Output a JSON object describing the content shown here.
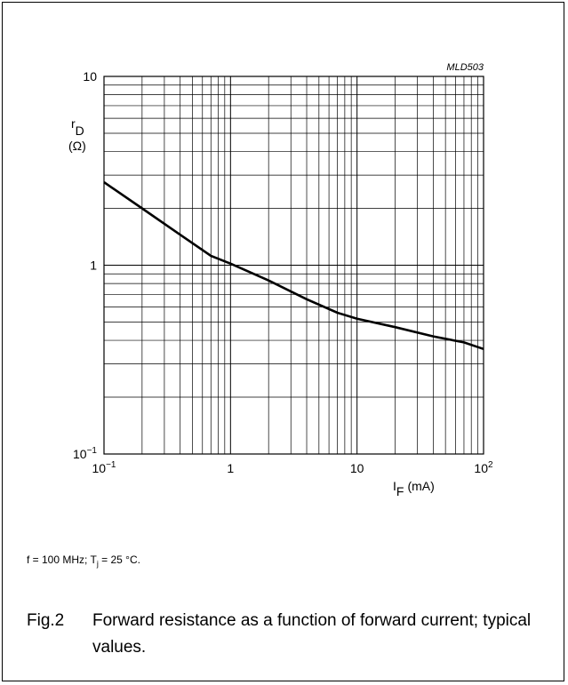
{
  "chart_data": {
    "type": "line",
    "title": "",
    "figure_id": "MLD503",
    "xscale": "log",
    "yscale": "log",
    "xlim": [
      0.1,
      100
    ],
    "ylim": [
      0.1,
      10
    ],
    "xlabel": {
      "symbol": "I",
      "subscript": "F",
      "unit": "(mA)"
    },
    "ylabel": {
      "symbol": "r",
      "subscript": "D",
      "unit": "(Ω)"
    },
    "x_ticks": [
      {
        "base": "10",
        "exp": "−1"
      },
      {
        "base": "1",
        "exp": ""
      },
      {
        "base": "10",
        "exp": ""
      },
      {
        "base": "10",
        "exp": "2"
      }
    ],
    "y_ticks": [
      {
        "base": "10",
        "exp": ""
      },
      {
        "base": "1",
        "exp": ""
      },
      {
        "base": "10",
        "exp": "−1"
      }
    ],
    "grid": true,
    "series": [
      {
        "x": [
          0.1,
          0.2,
          0.4,
          0.7,
          1,
          2,
          4,
          7,
          10,
          20,
          40,
          70,
          100
        ],
        "y": [
          2.75,
          2.0,
          1.45,
          1.12,
          1.02,
          0.83,
          0.66,
          0.56,
          0.52,
          0.47,
          0.42,
          0.39,
          0.36
        ]
      }
    ]
  },
  "conditions": {
    "text1": "f = 100 MHz; T",
    "sub": "j",
    "text2": " = 25 °C."
  },
  "caption": {
    "number": "Fig.2",
    "text": "Forward resistance as a function of forward current; typical values."
  }
}
